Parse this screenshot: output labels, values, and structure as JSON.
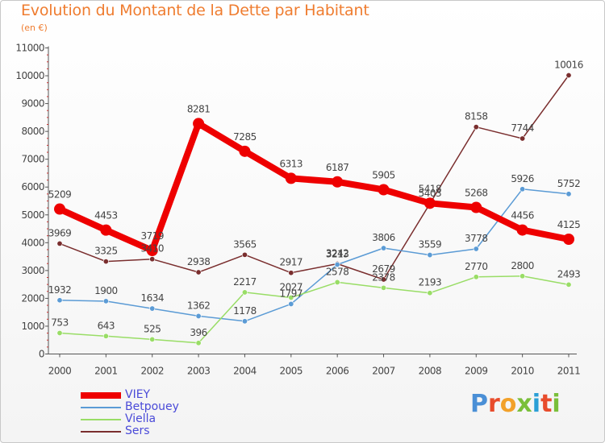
{
  "title": "Evolution du Montant de la Dette par Habitant",
  "subtitle": "(en €)",
  "logo": [
    "P",
    "r",
    "o",
    "x",
    "i",
    "t",
    "i"
  ],
  "logo_colors": [
    "#4a8fd6",
    "#e84c2c",
    "#f2a12a",
    "#7abf3a",
    "#2a9fd6",
    "#e84c2c",
    "#7abf3a"
  ],
  "chart_data": {
    "type": "line",
    "x": [
      "2000",
      "2001",
      "2002",
      "2003",
      "2004",
      "2005",
      "2006",
      "2007",
      "2008",
      "2009",
      "2010",
      "2011"
    ],
    "ylim": [
      0,
      11000
    ],
    "yticks": [
      "0",
      "1000",
      "2000",
      "3000",
      "4000",
      "5000",
      "6000",
      "7000",
      "8000",
      "9000",
      "10000",
      "11000"
    ],
    "series": [
      {
        "name": "VIEY",
        "color": "#ee0000",
        "values": [
          5209,
          4453,
          3719,
          8281,
          7285,
          6313,
          6187,
          5905,
          5418,
          5268,
          4456,
          4125
        ]
      },
      {
        "name": "Betpouey",
        "color": "#5b9bd5",
        "values": [
          1932,
          1900,
          1634,
          1362,
          1178,
          1797,
          3213,
          3806,
          3559,
          3778,
          5926,
          5752
        ]
      },
      {
        "name": "Viella",
        "color": "#99dd66",
        "values": [
          753,
          643,
          525,
          396,
          2217,
          2027,
          2578,
          2378,
          2193,
          2770,
          2800,
          2493
        ]
      },
      {
        "name": "Sers",
        "color": "#7a2e2e",
        "values": [
          3969,
          3325,
          3410,
          2938,
          3565,
          2917,
          3242,
          2679,
          5403,
          8158,
          7744,
          10016
        ]
      }
    ]
  }
}
